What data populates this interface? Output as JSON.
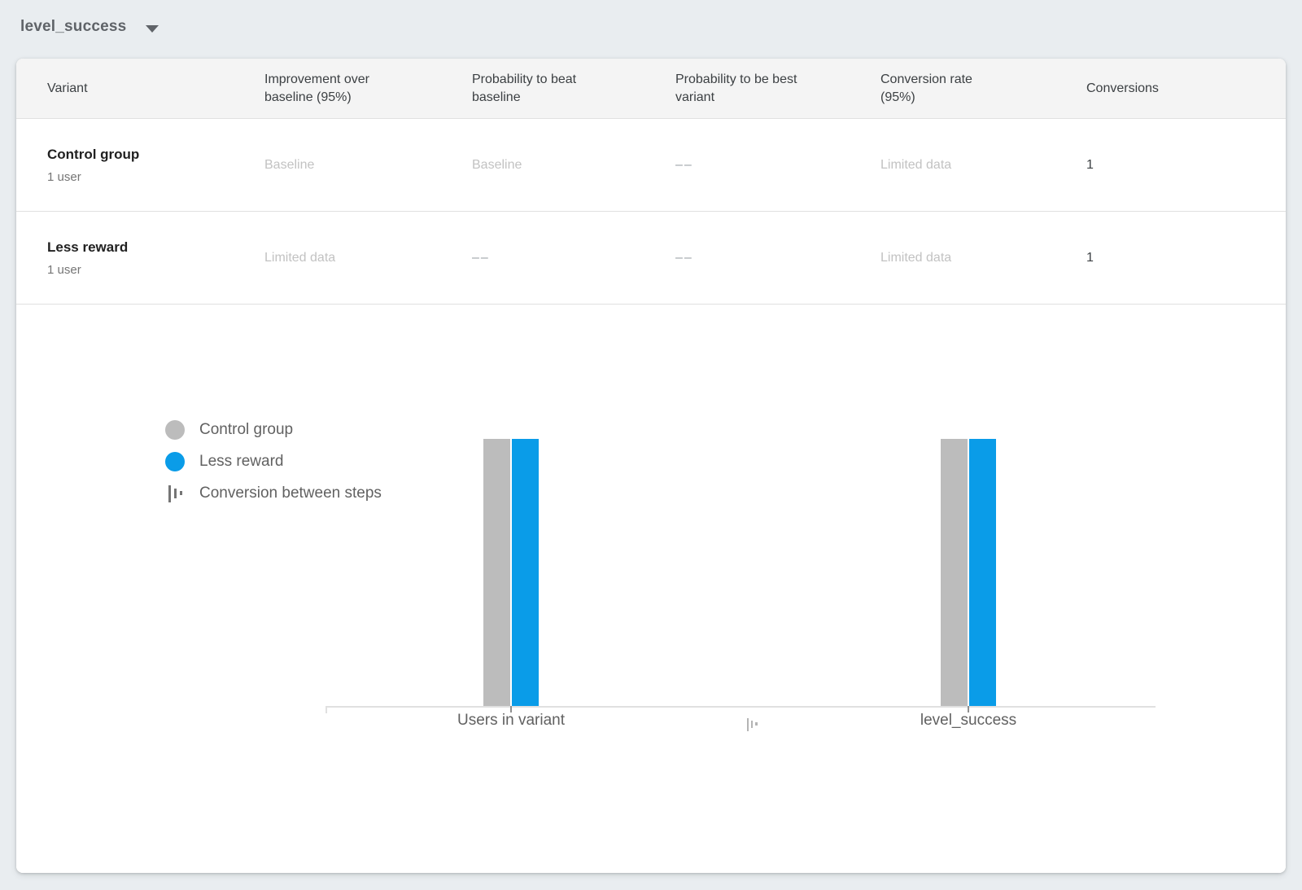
{
  "goal_selector": {
    "label": "level_success",
    "caret_icon": "caret-down"
  },
  "table": {
    "columns": [
      "Variant",
      "Improvement over baseline (95%)",
      "Probability to beat baseline",
      "Probability to be best variant",
      "Conversion rate (95%)",
      "Conversions"
    ],
    "rows": [
      {
        "name": "Control group",
        "users": "1 user",
        "improvement": "Baseline",
        "prob_beat_baseline": "Baseline",
        "prob_best": "––",
        "conversion_rate": "Limited data",
        "conversions": "1"
      },
      {
        "name": "Less reward",
        "users": "1 user",
        "improvement": "Limited data",
        "prob_beat_baseline": "––",
        "prob_best": "––",
        "conversion_rate": "Limited data",
        "conversions": "1"
      }
    ]
  },
  "chart_data": {
    "type": "bar",
    "categories": [
      "Users in variant",
      "level_success"
    ],
    "series": [
      {
        "name": "Control group",
        "color": "#bcbcbc",
        "values": [
          1,
          1
        ]
      },
      {
        "name": "Less reward",
        "color": "#0a9ce8",
        "values": [
          1,
          1
        ]
      }
    ],
    "legend": [
      {
        "label": "Control group",
        "marker": "circle",
        "color": "#bcbcbc"
      },
      {
        "label": "Less reward",
        "marker": "circle",
        "color": "#0a9ce8"
      },
      {
        "label": "Conversion between steps",
        "marker": "funnel-icon",
        "color": "#757575"
      }
    ],
    "title": "",
    "xlabel": "",
    "ylabel": "",
    "ylim": [
      0,
      1
    ],
    "grid": false,
    "legend_position": "left"
  },
  "colors": {
    "page_background": "#e9edf0",
    "card_background": "#ffffff",
    "table_header_background": "#f4f4f4",
    "divider": "#e0e0e0",
    "control_group_gray": "#bcbcbc",
    "less_reward_blue": "#0a9ce8",
    "muted_value_text": "#c2c2c2",
    "dash_value_text": "#9aa0a6",
    "primary_text": "#212121",
    "secondary_text": "#616161",
    "axis_line": "#e0e0e0",
    "axis_icon_gray": "#b4b4b4"
  }
}
